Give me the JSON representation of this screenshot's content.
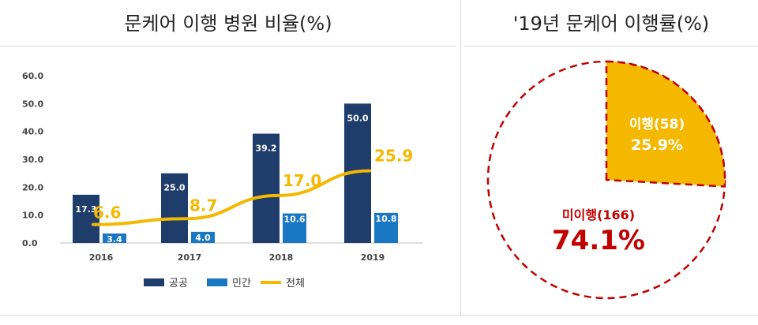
{
  "titles": {
    "left": "문케어 이행 병원 비율(%)",
    "right": "'19년 문케어 이행률(%)"
  },
  "chart_data": [
    {
      "type": "bar",
      "title": "문케어 이행 병원 비율(%)",
      "categories": [
        "2016",
        "2017",
        "2018",
        "2019"
      ],
      "ylim": [
        0,
        60
      ],
      "yticks": [
        "0.0",
        "10.0",
        "20.0",
        "30.0",
        "40.0",
        "50.0",
        "60.0"
      ],
      "grid": false,
      "legend_position": "bottom",
      "series": [
        {
          "name": "공공",
          "kind": "bar",
          "color": "#1f3d6b",
          "values": [
            17.3,
            25.0,
            39.2,
            50.0
          ],
          "labels": [
            "17.3",
            "25.0",
            "39.2",
            "50.0"
          ]
        },
        {
          "name": "민간",
          "kind": "bar",
          "color": "#1a78c2",
          "values": [
            3.4,
            4.0,
            10.6,
            10.8
          ],
          "labels": [
            "3.4",
            "4.0",
            "10.6",
            "10.8"
          ]
        },
        {
          "name": "전체",
          "kind": "line",
          "color": "#f5b800",
          "values": [
            6.6,
            8.7,
            17.0,
            25.9
          ],
          "labels": [
            "6.6",
            "8.7",
            "17.0",
            "25.9"
          ]
        }
      ]
    },
    {
      "type": "pie",
      "title": "'19년 문케어 이행률(%)",
      "slices": [
        {
          "label": "이행(58)",
          "value": 25.9,
          "value_label": "25.9%",
          "color": "#f5b800"
        },
        {
          "label": "미이행(166)",
          "value": 74.1,
          "value_label": "74.1%",
          "color": "#c00000"
        }
      ]
    }
  ]
}
